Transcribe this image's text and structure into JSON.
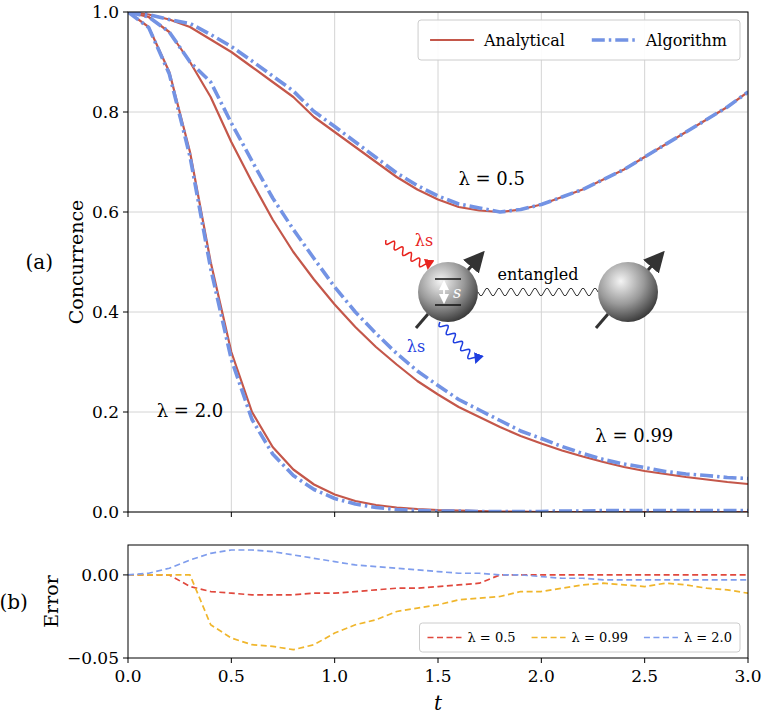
{
  "chart_data": [
    {
      "type": "line",
      "panel_label": "(a)",
      "y_label": "Concurrence",
      "x": [
        0,
        0.1,
        0.2,
        0.3,
        0.4,
        0.5,
        0.6,
        0.7,
        0.8,
        0.9,
        1,
        1.1,
        1.2,
        1.3,
        1.4,
        1.5,
        1.6,
        1.7,
        1.8,
        1.9,
        2,
        2.1,
        2.2,
        2.3,
        2.4,
        2.5,
        2.6,
        2.7,
        2.8,
        2.9,
        3
      ],
      "xlim": [
        0,
        3
      ],
      "ylim": [
        0,
        1
      ],
      "xticks": [
        0,
        0.5,
        1,
        1.5,
        2,
        2.5,
        3
      ],
      "yticks": [
        {
          "value": 0,
          "label": "0.0"
        },
        {
          "value": 0.2,
          "label": "0.2"
        },
        {
          "value": 0.4,
          "label": "0.4"
        },
        {
          "value": 0.6,
          "label": "0.6"
        },
        {
          "value": 0.8,
          "label": "0.8"
        },
        {
          "value": 1,
          "label": "1.0"
        }
      ],
      "grid": true,
      "tick_labels": "y",
      "legend": "upper right",
      "series": [
        {
          "name": "Analytical",
          "color": "#c4574a",
          "line_style": "solid",
          "values": [
            1,
            0.995,
            0.985,
            0.97,
            0.945,
            0.92,
            0.89,
            0.86,
            0.83,
            0.79,
            0.76,
            0.73,
            0.7,
            0.67,
            0.645,
            0.625,
            0.61,
            0.603,
            0.6,
            0.605,
            0.615,
            0.63,
            0.645,
            0.665,
            0.685,
            0.71,
            0.735,
            0.76,
            0.785,
            0.81,
            0.84
          ]
        },
        {
          "name": "Algorithm",
          "color": "#7393e4",
          "line_style": "dashdot",
          "values": [
            1,
            0.995,
            0.985,
            0.977,
            0.955,
            0.931,
            0.902,
            0.872,
            0.842,
            0.801,
            0.771,
            0.74,
            0.709,
            0.678,
            0.653,
            0.632,
            0.616,
            0.608,
            0.6,
            0.605,
            0.615,
            0.63,
            0.645,
            0.665,
            0.685,
            0.71,
            0.735,
            0.76,
            0.785,
            0.81,
            0.84
          ]
        },
        {
          "name": "Analytical",
          "color": "#c4574a",
          "line_style": "solid",
          "values": [
            1,
            0.99,
            0.96,
            0.9,
            0.83,
            0.74,
            0.66,
            0.585,
            0.52,
            0.465,
            0.415,
            0.37,
            0.33,
            0.295,
            0.262,
            0.235,
            0.21,
            0.19,
            0.17,
            0.152,
            0.137,
            0.123,
            0.111,
            0.1,
            0.09,
            0.082,
            0.076,
            0.07,
            0.065,
            0.06,
            0.056
          ]
        },
        {
          "name": "Algorithm",
          "color": "#7393e4",
          "line_style": "dashdot",
          "values": [
            1,
            0.99,
            0.96,
            0.9,
            0.86,
            0.778,
            0.702,
            0.628,
            0.565,
            0.507,
            0.45,
            0.4,
            0.357,
            0.317,
            0.282,
            0.253,
            0.225,
            0.204,
            0.183,
            0.162,
            0.147,
            0.131,
            0.117,
            0.105,
            0.096,
            0.089,
            0.081,
            0.076,
            0.073,
            0.069,
            0.067
          ]
        },
        {
          "name": "Analytical",
          "color": "#c4574a",
          "line_style": "solid",
          "values": [
            1,
            0.97,
            0.88,
            0.72,
            0.5,
            0.32,
            0.2,
            0.13,
            0.085,
            0.055,
            0.035,
            0.022,
            0.014,
            0.009,
            0.006,
            0.004,
            0.003,
            0.002,
            0.001,
            0.001,
            0,
            0,
            0,
            0,
            0,
            0,
            0,
            0,
            0,
            0,
            0
          ]
        },
        {
          "name": "Algorithm",
          "color": "#7393e4",
          "line_style": "dashdot",
          "values": [
            1,
            0.969,
            0.876,
            0.711,
            0.487,
            0.305,
            0.185,
            0.116,
            0.073,
            0.045,
            0.027,
            0.016,
            0.009,
            0.005,
            0.003,
            0.002,
            0.002,
            0.001,
            0.001,
            0.001,
            0.001,
            0.002,
            0.002,
            0.003,
            0.003,
            0.003,
            0.003,
            0.003,
            0.003,
            0.003,
            0.003
          ]
        }
      ],
      "annotations": [
        {
          "text": "λ = 0.5",
          "x": 1.76,
          "y": 0.655
        },
        {
          "text": "λ = 0.99",
          "x": 2.45,
          "y": 0.14
        },
        {
          "text": "λ = 2.0",
          "x": 0.3,
          "y": 0.19
        }
      ],
      "inset": {
        "incoming": "λs",
        "outgoing": "λs",
        "gap": "s",
        "link": "entangled"
      }
    },
    {
      "type": "line",
      "panel_label": "(b)",
      "x_label": "t",
      "y_label": "Error",
      "x": [
        0,
        0.1,
        0.2,
        0.3,
        0.4,
        0.5,
        0.6,
        0.7,
        0.8,
        0.9,
        1,
        1.1,
        1.2,
        1.3,
        1.4,
        1.5,
        1.6,
        1.7,
        1.8,
        1.9,
        2,
        2.1,
        2.2,
        2.3,
        2.4,
        2.5,
        2.6,
        2.7,
        2.8,
        2.9,
        3
      ],
      "xlim": [
        0,
        3
      ],
      "ylim": [
        -0.05,
        0.018
      ],
      "xticks": [
        {
          "value": 0,
          "label": "0.0"
        },
        {
          "value": 0.5,
          "label": "0.5"
        },
        {
          "value": 1,
          "label": "1.0"
        },
        {
          "value": 1.5,
          "label": "1.5"
        },
        {
          "value": 2,
          "label": "2.0"
        },
        {
          "value": 2.5,
          "label": "2.5"
        },
        {
          "value": 3,
          "label": "3.0"
        }
      ],
      "yticks": [
        {
          "value": -0.05,
          "label": "−0.05"
        },
        {
          "value": 0,
          "label": "0.00"
        }
      ],
      "grid": false,
      "legend": "lower right",
      "series": [
        {
          "name": "λ = 0.5",
          "color": "#e0483d",
          "line_style": "dashed",
          "values": [
            0,
            0,
            0,
            -0.007,
            -0.01,
            -0.011,
            -0.012,
            -0.012,
            -0.012,
            -0.011,
            -0.011,
            -0.01,
            -0.009,
            -0.008,
            -0.008,
            -0.007,
            -0.006,
            -0.005,
            0,
            0,
            0,
            0,
            0,
            0,
            0,
            0,
            0,
            0,
            0,
            0,
            0
          ]
        },
        {
          "name": "λ = 0.99",
          "color": "#f0b62c",
          "line_style": "dashed",
          "values": [
            0,
            0,
            0,
            0,
            -0.03,
            -0.038,
            -0.042,
            -0.043,
            -0.045,
            -0.042,
            -0.035,
            -0.03,
            -0.027,
            -0.022,
            -0.02,
            -0.018,
            -0.015,
            -0.014,
            -0.013,
            -0.01,
            -0.01,
            -0.008,
            -0.006,
            -0.005,
            -0.006,
            -0.007,
            -0.005,
            -0.006,
            -0.008,
            -0.009,
            -0.011
          ]
        },
        {
          "name": "λ = 2.0",
          "color": "#7f9ded",
          "line_style": "dashed",
          "values": [
            0,
            0.001,
            0.004,
            0.009,
            0.013,
            0.015,
            0.015,
            0.014,
            0.012,
            0.01,
            0.008,
            0.006,
            0.005,
            0.004,
            0.003,
            0.002,
            0.001,
            0.001,
            0,
            0,
            -0.001,
            -0.002,
            -0.002,
            -0.003,
            -0.003,
            -0.003,
            -0.003,
            -0.003,
            -0.003,
            -0.003,
            -0.003
          ]
        }
      ]
    }
  ]
}
